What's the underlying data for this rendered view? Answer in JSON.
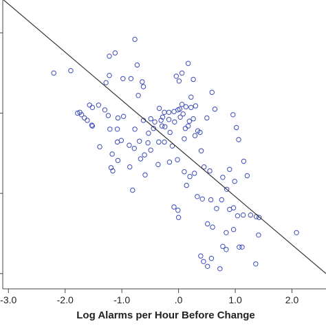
{
  "chart_data": {
    "type": "scatter",
    "title": "",
    "xlabel": "Log Alarms per Hour Before Change",
    "ylabel": "",
    "xlim": [
      -3.1,
      2.6
    ],
    "ylim": [
      -2.05,
      1.55
    ],
    "x_ticks": [
      -3.0,
      -2.0,
      -1.0,
      0.0,
      1.0,
      2.0
    ],
    "x_tick_labels": [
      "-3.0",
      "-2.0",
      "-1.0",
      ".0",
      "1.0",
      "2.0"
    ],
    "y_ticks": [
      -1.86,
      -0.86,
      0.14,
      1.14
    ],
    "y_tick_labels": [
      "",
      "",
      "",
      ""
    ],
    "grid": false,
    "legend": "none",
    "marker": "open-circle",
    "marker_color": "#3b4bb8",
    "fit_line": {
      "slope": -0.6,
      "intercept": -0.3,
      "color": "#333333"
    },
    "series": [
      {
        "points": [
          [
            -0.77,
            1.06
          ],
          [
            -1.12,
            0.89
          ],
          [
            -1.22,
            0.85
          ],
          [
            -0.73,
            0.74
          ],
          [
            0.17,
            0.76
          ],
          [
            -1.9,
            0.67
          ],
          [
            -2.2,
            0.64
          ],
          [
            -1.28,
            0.52
          ],
          [
            -1.22,
            0.61
          ],
          [
            -0.98,
            0.57
          ],
          [
            -0.84,
            0.57
          ],
          [
            -0.64,
            0.53
          ],
          [
            -0.62,
            0.47
          ],
          [
            -0.71,
            0.36
          ],
          [
            -1.57,
            0.24
          ],
          [
            -1.52,
            0.21
          ],
          [
            -1.41,
            0.24
          ],
          [
            -1.3,
            0.18
          ],
          [
            -1.24,
            0.11
          ],
          [
            -1.07,
            0.08
          ],
          [
            -0.97,
            0.1
          ],
          [
            -0.34,
            0.2
          ],
          [
            -0.49,
            0.07
          ],
          [
            -0.62,
            0.05
          ],
          [
            -0.31,
            0.05
          ],
          [
            -0.25,
            0.15
          ],
          [
            -1.78,
            0.14
          ],
          [
            -1.74,
            0.15
          ],
          [
            -1.71,
            0.12
          ],
          [
            -1.66,
            0.08
          ],
          [
            -1.61,
            0.05
          ],
          [
            -1.53,
            -0.01
          ],
          [
            -1.52,
            -0.02
          ],
          [
            -1.21,
            -0.06
          ],
          [
            -1.08,
            -0.06
          ],
          [
            -0.77,
            -0.06
          ],
          [
            -0.44,
            -0.05
          ],
          [
            -0.24,
            -0.03
          ],
          [
            0.06,
            0.64
          ],
          [
            0.01,
            0.54
          ],
          [
            -0.04,
            0.6
          ],
          [
            0.26,
            0.56
          ],
          [
            0.22,
            0.34
          ],
          [
            0.06,
            0.25
          ],
          [
            0.13,
            0.22
          ],
          [
            0.22,
            0.21
          ],
          [
            0.3,
            0.23
          ],
          [
            0.02,
            0.19
          ],
          [
            -0.01,
            0.18
          ],
          [
            -0.08,
            0.16
          ],
          [
            -0.17,
            0.15
          ],
          [
            -0.28,
            0.09
          ],
          [
            -0.42,
            0.03
          ],
          [
            0.03,
            0.09
          ],
          [
            -0.17,
            0.06
          ],
          [
            -0.07,
            0.03
          ],
          [
            0.19,
            0.04
          ],
          [
            0.26,
            0.07
          ],
          [
            -0.53,
            -0.11
          ],
          [
            -0.15,
            -0.1
          ],
          [
            -0.29,
            -0.02
          ],
          [
            0.08,
            0.13
          ],
          [
            0.17,
            -0.02
          ],
          [
            -0.78,
            -0.3
          ],
          [
            -0.49,
            -0.32
          ],
          [
            -0.35,
            -0.22
          ],
          [
            -0.25,
            -0.22
          ],
          [
            -0.11,
            -0.27
          ],
          [
            0.12,
            -0.05
          ],
          [
            0.34,
            -0.08
          ],
          [
            0.29,
            -0.14
          ],
          [
            0.1,
            -0.18
          ],
          [
            0.38,
            -0.1
          ],
          [
            0.5,
            0.08
          ],
          [
            0.59,
            0.4
          ],
          [
            0.64,
            0.19
          ],
          [
            0.96,
            0.12
          ],
          [
            1.02,
            -0.04
          ],
          [
            1.06,
            -0.19
          ],
          [
            0.4,
            -0.33
          ],
          [
            -1.08,
            -0.22
          ],
          [
            -1.01,
            -0.2
          ],
          [
            -0.87,
            -0.26
          ],
          [
            -0.69,
            -0.21
          ],
          [
            -0.54,
            -0.23
          ],
          [
            -0.6,
            -0.38
          ],
          [
            -0.67,
            -0.43
          ],
          [
            -0.86,
            -0.53
          ],
          [
            -1.07,
            -0.45
          ],
          [
            -1.17,
            -0.37
          ],
          [
            -1.39,
            -0.28
          ],
          [
            -1.19,
            -0.54
          ],
          [
            -1.16,
            -0.58
          ],
          [
            -0.36,
            -0.5
          ],
          [
            -0.16,
            -0.47
          ],
          [
            -0.02,
            -0.44
          ],
          [
            0.1,
            -0.59
          ],
          [
            0.2,
            -0.65
          ],
          [
            0.28,
            -0.61
          ],
          [
            0.45,
            -0.53
          ],
          [
            0.55,
            -0.58
          ],
          [
            0.78,
            -0.66
          ],
          [
            0.9,
            -0.56
          ],
          [
            1.15,
            -0.46
          ],
          [
            1.21,
            -0.64
          ],
          [
            0.85,
            -0.81
          ],
          [
            0.99,
            -0.71
          ],
          [
            -0.59,
            -0.63
          ],
          [
            -0.81,
            -0.82
          ],
          [
            0.14,
            -0.76
          ],
          [
            0.33,
            -0.9
          ],
          [
            0.42,
            -0.93
          ],
          [
            0.57,
            -0.94
          ],
          [
            0.76,
            -0.94
          ],
          [
            0.67,
            -1.05
          ],
          [
            0.9,
            -1.06
          ],
          [
            0.97,
            -1.04
          ],
          [
            1.14,
            -1.13
          ],
          [
            1.37,
            -1.15
          ],
          [
            1.42,
            -1.16
          ],
          [
            -0.08,
            -1.03
          ],
          [
            -0.01,
            -1.07
          ],
          [
            1.04,
            -1.14
          ],
          [
            1.27,
            -1.13
          ],
          [
            2.08,
            -1.35
          ],
          [
            1.41,
            -1.38
          ],
          [
            0.97,
            -1.31
          ],
          [
            0.84,
            -1.35
          ],
          [
            0.6,
            -1.28
          ],
          [
            0.51,
            -1.24
          ],
          [
            0.78,
            -1.52
          ],
          [
            0.84,
            -1.56
          ],
          [
            1.07,
            -1.53
          ],
          [
            1.12,
            -1.53
          ],
          [
            0.39,
            -1.64
          ],
          [
            0.44,
            -1.71
          ],
          [
            0.58,
            -1.67
          ],
          [
            0.51,
            -1.77
          ],
          [
            0.73,
            -1.8
          ],
          [
            1.36,
            -1.74
          ],
          [
            0.0,
            -1.16
          ]
        ]
      }
    ]
  }
}
